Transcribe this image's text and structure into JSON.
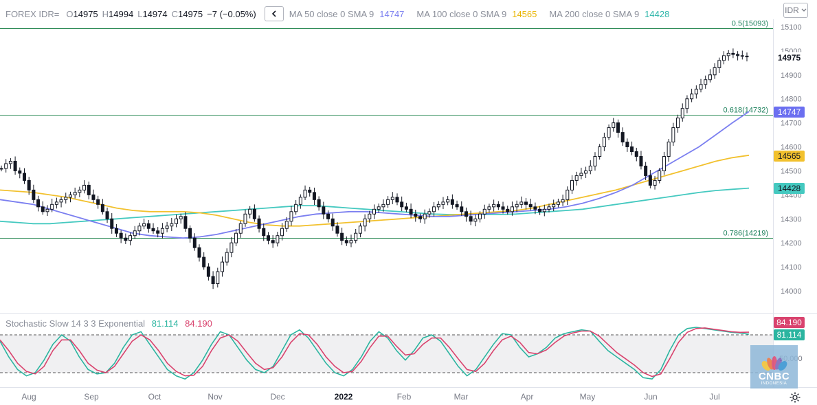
{
  "header": {
    "symbol": "FOREX IDR=",
    "o_label": "O",
    "o_value": "14975",
    "h_label": "H",
    "h_value": "14994",
    "l_label": "L",
    "l_value": "14974",
    "c_label": "C",
    "c_value": "14975",
    "change": "−7 (−0.05%)",
    "ma50_label": "MA 50 close 0 SMA 9",
    "ma50_value": "14747",
    "ma100_label": "MA 100 close 0 SMA 9",
    "ma100_value": "14565",
    "ma200_label": "MA 200 close 0 SMA 9",
    "ma200_value": "14428",
    "currency_button": "IDR"
  },
  "colors": {
    "ma50": "#7b7ff0",
    "ma100": "#f2c12e",
    "ma200": "#45c9c0",
    "fib": "#2e8b57",
    "fib_text": "#1a7f5a",
    "stoch_k": "#2bb5a0",
    "stoch_d": "#d9436e"
  },
  "fib_levels": [
    {
      "label": "0.5(15093)",
      "value": 15093
    },
    {
      "label": "0.618(14732)",
      "value": 14732
    },
    {
      "label": "0.786(14219)",
      "value": 14219
    }
  ],
  "price_badges": {
    "last": "14975",
    "ma50": "14747",
    "ma100": "14565",
    "ma200": "14428"
  },
  "stochastic": {
    "title": "Stochastic Slow 14 3 3 Exponential",
    "k_value": "81.114",
    "d_value": "84.190",
    "k_badge": "81.114",
    "d_badge": "84.190",
    "axis_label": "50.000",
    "upper_band": 80,
    "lower_band": 20
  },
  "logo": {
    "name": "CNBC",
    "sub": "INDONESIA"
  },
  "chart_data": {
    "type": "candlestick",
    "title": "FOREX IDR=",
    "ylim": [
      13900,
      15150
    ],
    "y_ticks": [
      14000,
      14100,
      14200,
      14300,
      14400,
      14500,
      14600,
      14700,
      14800,
      14900,
      15000,
      15100
    ],
    "x_ticks": [
      "Aug",
      "Sep",
      "Oct",
      "Nov",
      "Dec",
      "2022",
      "Feb",
      "Mar",
      "Apr",
      "May",
      "Jun",
      "Jul"
    ],
    "last": {
      "open": 14975,
      "high": 14994,
      "low": 14974,
      "close": 14975,
      "change": -7,
      "change_pct": -0.05
    },
    "close_series": [
      14510,
      14530,
      14540,
      14500,
      14490,
      14460,
      14420,
      14380,
      14350,
      14330,
      14340,
      14360,
      14370,
      14380,
      14390,
      14400,
      14410,
      14420,
      14440,
      14400,
      14380,
      14360,
      14330,
      14300,
      14260,
      14240,
      14220,
      14210,
      14230,
      14250,
      14270,
      14280,
      14260,
      14250,
      14240,
      14260,
      14270,
      14280,
      14300,
      14310,
      14260,
      14220,
      14180,
      14140,
      14100,
      14060,
      14030,
      14080,
      14120,
      14160,
      14200,
      14240,
      14280,
      14320,
      14340,
      14300,
      14260,
      14230,
      14210,
      14200,
      14230,
      14260,
      14290,
      14330,
      14360,
      14390,
      14420,
      14410,
      14380,
      14350,
      14320,
      14300,
      14270,
      14240,
      14210,
      14200,
      14210,
      14240,
      14270,
      14300,
      14320,
      14340,
      14350,
      14360,
      14380,
      14390,
      14370,
      14350,
      14340,
      14320,
      14310,
      14300,
      14320,
      14330,
      14350,
      14360,
      14370,
      14380,
      14360,
      14350,
      14330,
      14310,
      14290,
      14300,
      14320,
      14340,
      14350,
      14360,
      14350,
      14340,
      14330,
      14350,
      14360,
      14370,
      14360,
      14350,
      14340,
      14330,
      14340,
      14350,
      14360,
      14370,
      14380,
      14420,
      14460,
      14480,
      14490,
      14500,
      14520,
      14560,
      14600,
      14640,
      14680,
      14700,
      14660,
      14620,
      14600,
      14580,
      14560,
      14520,
      14480,
      14440,
      14460,
      14500,
      14560,
      14620,
      14680,
      14720,
      14760,
      14800,
      14820,
      14840,
      14860,
      14880,
      14900,
      14930,
      14960,
      14980,
      14990,
      14985,
      14980,
      14978,
      14975
    ],
    "ma50": [
      14380,
      14370,
      14360,
      14340,
      14320,
      14300,
      14280,
      14260,
      14240,
      14230,
      14225,
      14220,
      14225,
      14235,
      14250,
      14265,
      14280,
      14295,
      14310,
      14320,
      14325,
      14330,
      14330,
      14325,
      14320,
      14315,
      14310,
      14310,
      14315,
      14320,
      14325,
      14330,
      14335,
      14340,
      14350,
      14365,
      14385,
      14410,
      14440,
      14480,
      14520,
      14560,
      14600,
      14650,
      14700,
      14747
    ],
    "ma100": [
      14420,
      14415,
      14410,
      14400,
      14390,
      14375,
      14360,
      14345,
      14335,
      14330,
      14330,
      14330,
      14325,
      14315,
      14300,
      14285,
      14275,
      14270,
      14270,
      14275,
      14280,
      14285,
      14290,
      14295,
      14300,
      14305,
      14310,
      14315,
      14320,
      14325,
      14330,
      14335,
      14345,
      14360,
      14375,
      14390,
      14405,
      14420,
      14440,
      14460,
      14480,
      14500,
      14520,
      14540,
      14555,
      14565
    ],
    "ma200": [
      14290,
      14285,
      14280,
      14280,
      14285,
      14290,
      14295,
      14300,
      14305,
      14310,
      14315,
      14320,
      14325,
      14330,
      14335,
      14340,
      14345,
      14350,
      14355,
      14355,
      14350,
      14345,
      14340,
      14335,
      14330,
      14325,
      14320,
      14318,
      14318,
      14318,
      14318,
      14320,
      14325,
      14330,
      14335,
      14340,
      14350,
      14360,
      14370,
      14380,
      14390,
      14400,
      14410,
      14418,
      14423,
      14428
    ],
    "stoch_k": [
      70,
      45,
      25,
      15,
      20,
      40,
      65,
      80,
      70,
      45,
      25,
      18,
      20,
      35,
      60,
      80,
      85,
      65,
      45,
      25,
      15,
      10,
      20,
      40,
      65,
      85,
      80,
      60,
      40,
      25,
      20,
      30,
      55,
      80,
      88,
      75,
      55,
      35,
      20,
      15,
      25,
      45,
      70,
      85,
      75,
      55,
      40,
      55,
      75,
      80,
      70,
      50,
      30,
      15,
      25,
      45,
      65,
      82,
      80,
      60,
      45,
      50,
      60,
      75,
      82,
      85,
      88,
      86,
      70,
      55,
      45,
      35,
      25,
      12,
      10,
      25,
      55,
      80,
      90,
      92,
      90,
      88,
      86,
      84,
      83,
      81.1
    ],
    "stoch_d": [
      72,
      55,
      35,
      22,
      18,
      30,
      55,
      72,
      72,
      55,
      35,
      24,
      20,
      30,
      50,
      70,
      80,
      72,
      55,
      35,
      22,
      15,
      16,
      30,
      55,
      75,
      80,
      70,
      52,
      35,
      25,
      28,
      45,
      68,
      82,
      80,
      65,
      45,
      30,
      20,
      22,
      38,
      60,
      78,
      78,
      62,
      48,
      50,
      65,
      75,
      75,
      60,
      42,
      25,
      22,
      35,
      55,
      72,
      78,
      68,
      52,
      50,
      56,
      68,
      78,
      83,
      86,
      86,
      78,
      65,
      52,
      42,
      32,
      20,
      14,
      18,
      42,
      68,
      84,
      90,
      91,
      89,
      87,
      85,
      84,
      84.2
    ]
  }
}
